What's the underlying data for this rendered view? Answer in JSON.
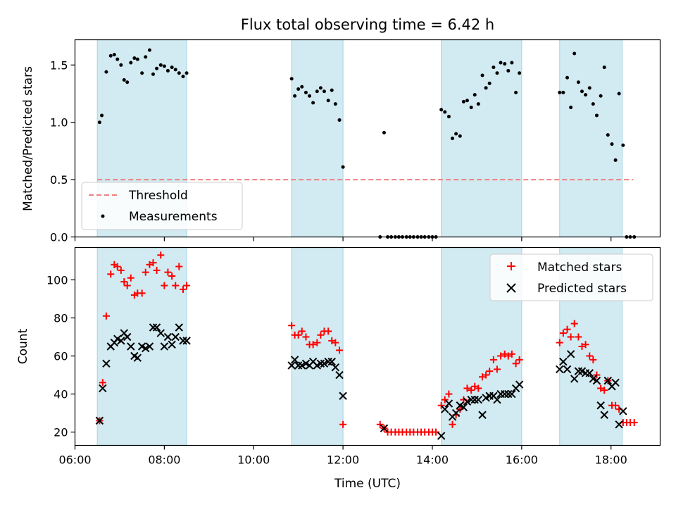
{
  "title": "Flux total observing time = 6.42 h",
  "xlabel": "Time (UTC)",
  "colors": {
    "band": "#add8e6",
    "threshold": "#f08080",
    "matched": "#ff0000",
    "predicted": "#000000",
    "measurement": "#000000"
  },
  "chart_data": [
    {
      "type": "scatter",
      "ylabel": "Matched/Predicted stars",
      "xlim": [
        6.0,
        19.1
      ],
      "ylim": [
        0.0,
        1.72
      ],
      "yticks": [
        0.0,
        0.5,
        1.0,
        1.5
      ],
      "ytick_labels": [
        "0.0",
        "0.5",
        "1.0",
        "1.5"
      ],
      "shaded_intervals": [
        [
          6.5,
          8.5
        ],
        [
          10.85,
          12.0
        ],
        [
          14.2,
          16.0
        ],
        [
          16.85,
          18.25
        ]
      ],
      "legend_position": "lower-left",
      "series": [
        {
          "name": "Threshold",
          "style": "dashed-line",
          "x": [
            6.5,
            18.5
          ],
          "y": [
            0.5,
            0.5
          ]
        },
        {
          "name": "Measurements",
          "style": "points",
          "x": [
            6.55,
            6.6,
            6.7,
            6.8,
            6.88,
            6.95,
            7.03,
            7.1,
            7.17,
            7.25,
            7.33,
            7.4,
            7.5,
            7.58,
            7.67,
            7.75,
            7.83,
            7.92,
            8.0,
            8.08,
            8.17,
            8.25,
            8.33,
            8.42,
            8.5,
            10.85,
            10.92,
            11.0,
            11.08,
            11.17,
            11.25,
            11.33,
            11.42,
            11.5,
            11.58,
            11.67,
            11.75,
            11.83,
            11.92,
            12.0,
            12.83,
            12.92,
            13.0,
            13.08,
            13.17,
            13.25,
            13.33,
            13.42,
            13.5,
            13.58,
            13.67,
            13.75,
            13.83,
            13.92,
            14.0,
            14.08,
            14.2,
            14.28,
            14.37,
            14.45,
            14.53,
            14.62,
            14.7,
            14.78,
            14.87,
            14.95,
            15.03,
            15.12,
            15.2,
            15.28,
            15.37,
            15.45,
            15.53,
            15.62,
            15.7,
            15.78,
            15.87,
            15.95,
            16.85,
            16.93,
            17.02,
            17.1,
            17.18,
            17.27,
            17.35,
            17.43,
            17.52,
            17.6,
            17.68,
            17.77,
            17.85,
            17.93,
            18.02,
            18.1,
            18.18,
            18.27,
            18.35,
            18.43,
            18.52
          ],
          "y": [
            1.0,
            1.06,
            1.44,
            1.58,
            1.59,
            1.55,
            1.5,
            1.37,
            1.35,
            1.52,
            1.56,
            1.55,
            1.43,
            1.57,
            1.63,
            1.42,
            1.47,
            1.5,
            1.49,
            1.45,
            1.48,
            1.46,
            1.43,
            1.4,
            1.43,
            1.38,
            1.23,
            1.29,
            1.31,
            1.26,
            1.23,
            1.17,
            1.27,
            1.3,
            1.27,
            1.19,
            1.28,
            1.16,
            1.02,
            0.61,
            0.0,
            0.91,
            0.0,
            0.0,
            0.0,
            0.0,
            0.0,
            0.0,
            0.0,
            0.0,
            0.0,
            0.0,
            0.0,
            0.0,
            0.0,
            0.0,
            1.11,
            1.09,
            1.05,
            0.86,
            0.9,
            0.88,
            1.18,
            1.19,
            1.13,
            1.24,
            1.16,
            1.41,
            1.3,
            1.34,
            1.48,
            1.43,
            1.52,
            1.51,
            1.45,
            1.52,
            1.26,
            1.43,
            1.26,
            1.26,
            1.39,
            1.13,
            1.6,
            1.35,
            1.27,
            1.24,
            1.3,
            1.16,
            1.06,
            1.23,
            1.48,
            0.89,
            0.81,
            0.67,
            1.25,
            0.8,
            0.0,
            0.0,
            0.0
          ]
        }
      ]
    },
    {
      "type": "scatter",
      "ylabel": "Count",
      "xlim": [
        6.0,
        19.1
      ],
      "ylim": [
        13,
        117
      ],
      "yticks": [
        20,
        40,
        60,
        80,
        100
      ],
      "ytick_labels": [
        "20",
        "40",
        "60",
        "80",
        "100"
      ],
      "xticks": [
        6,
        8,
        10,
        12,
        14,
        16,
        18
      ],
      "xtick_labels": [
        "06:00",
        "08:00",
        "10:00",
        "12:00",
        "14:00",
        "16:00",
        "18:00"
      ],
      "shaded_intervals": [
        [
          6.5,
          8.5
        ],
        [
          10.85,
          12.0
        ],
        [
          14.2,
          16.0
        ],
        [
          16.85,
          18.25
        ]
      ],
      "legend_position": "upper-right",
      "series": [
        {
          "name": "Matched stars",
          "marker": "plus",
          "x": [
            6.55,
            6.62,
            6.7,
            6.8,
            6.88,
            6.95,
            7.03,
            7.1,
            7.17,
            7.25,
            7.33,
            7.4,
            7.5,
            7.58,
            7.67,
            7.75,
            7.83,
            7.92,
            8.0,
            8.08,
            8.17,
            8.25,
            8.33,
            8.42,
            8.5,
            10.85,
            10.92,
            11.0,
            11.08,
            11.17,
            11.25,
            11.33,
            11.42,
            11.5,
            11.58,
            11.67,
            11.75,
            11.83,
            11.92,
            12.0,
            12.83,
            12.92,
            13.0,
            13.08,
            13.17,
            13.25,
            13.33,
            13.42,
            13.5,
            13.58,
            13.67,
            13.75,
            13.83,
            13.92,
            14.0,
            14.08,
            14.2,
            14.28,
            14.37,
            14.45,
            14.53,
            14.62,
            14.7,
            14.78,
            14.87,
            14.95,
            15.03,
            15.12,
            15.2,
            15.28,
            15.37,
            15.45,
            15.53,
            15.62,
            15.7,
            15.78,
            15.87,
            15.95,
            16.85,
            16.93,
            17.02,
            17.1,
            17.18,
            17.27,
            17.35,
            17.43,
            17.52,
            17.6,
            17.68,
            17.77,
            17.85,
            17.93,
            18.02,
            18.1,
            18.18,
            18.27,
            18.35,
            18.43,
            18.52
          ],
          "y": [
            26,
            46,
            81,
            103,
            108,
            107,
            105,
            99,
            97,
            101,
            92,
            93,
            93,
            104,
            108,
            109,
            105,
            113,
            97,
            104,
            102,
            97,
            107,
            95,
            97,
            76,
            71,
            71,
            73,
            70,
            66,
            66,
            67,
            71,
            73,
            73,
            68,
            67,
            63,
            24,
            24,
            22,
            20,
            20,
            20,
            20,
            20,
            20,
            20,
            20,
            20,
            20,
            20,
            20,
            20,
            20,
            34,
            37,
            40,
            24,
            29,
            32,
            37,
            43,
            42,
            44,
            43,
            49,
            50,
            52,
            58,
            53,
            60,
            61,
            60,
            61,
            56,
            58,
            67,
            72,
            74,
            70,
            77,
            70,
            65,
            66,
            60,
            58,
            50,
            43,
            42,
            47,
            34,
            34,
            32,
            25,
            25,
            25,
            25
          ]
        },
        {
          "name": "Predicted stars",
          "marker": "x",
          "x": [
            6.55,
            6.62,
            6.7,
            6.8,
            6.88,
            6.95,
            7.03,
            7.1,
            7.17,
            7.25,
            7.33,
            7.4,
            7.5,
            7.58,
            7.67,
            7.75,
            7.83,
            7.92,
            8.0,
            8.08,
            8.17,
            8.25,
            8.33,
            8.42,
            8.5,
            10.85,
            10.92,
            11.0,
            11.08,
            11.17,
            11.25,
            11.33,
            11.42,
            11.5,
            11.58,
            11.67,
            11.75,
            11.83,
            11.92,
            12.0,
            12.92,
            14.2,
            14.28,
            14.37,
            14.45,
            14.53,
            14.62,
            14.7,
            14.78,
            14.87,
            14.95,
            15.03,
            15.12,
            15.2,
            15.28,
            15.37,
            15.45,
            15.53,
            15.62,
            15.7,
            15.78,
            15.87,
            15.95,
            16.85,
            16.93,
            17.02,
            17.1,
            17.18,
            17.27,
            17.35,
            17.43,
            17.52,
            17.6,
            17.68,
            17.77,
            17.85,
            17.93,
            18.02,
            18.1,
            18.18,
            18.27
          ],
          "y": [
            26,
            43,
            56,
            65,
            67,
            69,
            68,
            72,
            70,
            65,
            60,
            59,
            65,
            64,
            65,
            75,
            75,
            72,
            65,
            70,
            66,
            70,
            75,
            68,
            68,
            55,
            58,
            55,
            55,
            56,
            55,
            57,
            55,
            56,
            56,
            57,
            57,
            54,
            50,
            39,
            22,
            18,
            32,
            35,
            28,
            30,
            34,
            33,
            36,
            37,
            37,
            37,
            29,
            38,
            39,
            39,
            37,
            40,
            40,
            40,
            40,
            43,
            45,
            53,
            57,
            53,
            61,
            48,
            52,
            52,
            51,
            51,
            48,
            47,
            34,
            29,
            47,
            44,
            46,
            24,
            31
          ]
        }
      ]
    }
  ]
}
